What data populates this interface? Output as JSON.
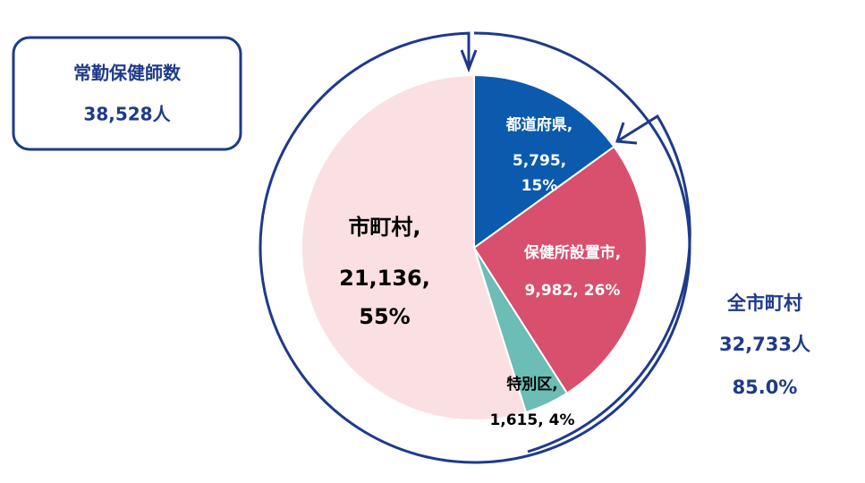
{
  "chart_data": {
    "type": "pie",
    "categories": [
      "都道府県,",
      "保健所設置市,",
      "特別区,",
      "市町村,"
    ],
    "values": [
      5795,
      9982,
      1615,
      21136
    ],
    "value_labels": [
      "5,795,",
      "9,982,",
      "1,615,",
      "21,136,"
    ],
    "percents": [
      15,
      26,
      4,
      55
    ],
    "percent_labels": [
      "15%",
      "26%",
      "4%",
      "55%"
    ],
    "colors": [
      "#0b5aad",
      "#d94f6e",
      "#6bbdb5",
      "#fbe0e3"
    ],
    "label_colors": [
      "#ffffff",
      "#ffffff",
      "#000000",
      "#000000"
    ],
    "summary": {
      "title": "常勤保健師数",
      "value": "38,528人"
    },
    "annotation": {
      "title": "全市町村",
      "value": "32,733人",
      "share": "85.0%"
    }
  }
}
